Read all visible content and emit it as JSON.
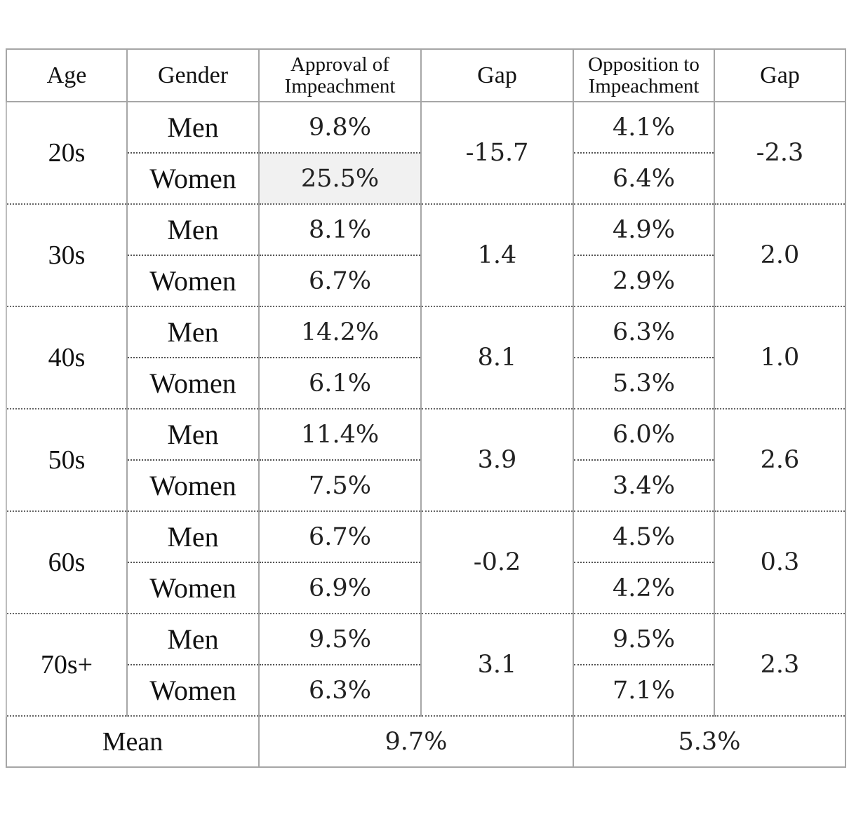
{
  "headers": {
    "age": "Age",
    "gender": "Gender",
    "approval": "Approval of Impeachment",
    "gap1": "Gap",
    "opposition": "Opposition to Impeachment",
    "gap2": "Gap"
  },
  "rows": [
    {
      "age": "20s",
      "men": {
        "gender": "Men",
        "approval": "9.8%",
        "opposition": "4.1%"
      },
      "women": {
        "gender": "Women",
        "approval": "25.5%",
        "opposition": "6.4%"
      },
      "gap_approval": "-15.7",
      "gap_opposition": "-2.3"
    },
    {
      "age": "30s",
      "men": {
        "gender": "Men",
        "approval": "8.1%",
        "opposition": "4.9%"
      },
      "women": {
        "gender": "Women",
        "approval": "6.7%",
        "opposition": "2.9%"
      },
      "gap_approval": "1.4",
      "gap_opposition": "2.0"
    },
    {
      "age": "40s",
      "men": {
        "gender": "Men",
        "approval": "14.2%",
        "opposition": "6.3%"
      },
      "women": {
        "gender": "Women",
        "approval": "6.1%",
        "opposition": "5.3%"
      },
      "gap_approval": "8.1",
      "gap_opposition": "1.0"
    },
    {
      "age": "50s",
      "men": {
        "gender": "Men",
        "approval": "11.4%",
        "opposition": "6.0%"
      },
      "women": {
        "gender": "Women",
        "approval": "7.5%",
        "opposition": "3.4%"
      },
      "gap_approval": "3.9",
      "gap_opposition": "2.6"
    },
    {
      "age": "60s",
      "men": {
        "gender": "Men",
        "approval": "6.7%",
        "opposition": "4.5%"
      },
      "women": {
        "gender": "Women",
        "approval": "6.9%",
        "opposition": "4.2%"
      },
      "gap_approval": "-0.2",
      "gap_opposition": "0.3"
    },
    {
      "age": "70s+",
      "men": {
        "gender": "Men",
        "approval": "9.5%",
        "opposition": "9.5%"
      },
      "women": {
        "gender": "Women",
        "approval": "6.3%",
        "opposition": "7.1%"
      },
      "gap_approval": "3.1",
      "gap_opposition": "2.3"
    }
  ],
  "mean": {
    "label": "Mean",
    "approval": "9.7%",
    "opposition": "5.3%"
  },
  "highlight_color": "#f1f1f1"
}
